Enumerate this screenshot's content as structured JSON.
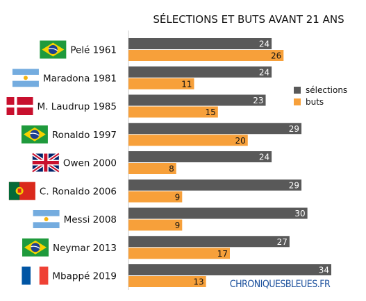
{
  "chart_data": {
    "type": "bar",
    "orientation": "horizontal",
    "title": "SÉLECTIONS ET BUTS AVANT 21 ANS",
    "categories": [
      "Pelé 1961",
      "Maradona 1981",
      "M. Laudrup 1985",
      "Ronaldo 1997",
      "Owen 2000",
      "C. Ronaldo 2006",
      "Messi 2008",
      "Neymar 2013",
      "Mbappé 2019"
    ],
    "flags": [
      "brazil-flag-icon",
      "argentina-flag-icon",
      "denmark-flag-icon",
      "brazil-flag-icon",
      "uk-flag-icon",
      "portugal-flag-icon",
      "argentina-flag-icon",
      "brazil-flag-icon",
      "france-flag-icon"
    ],
    "series": [
      {
        "name": "sélections",
        "color": "#595959",
        "values": [
          24,
          24,
          23,
          29,
          24,
          29,
          30,
          27,
          34
        ]
      },
      {
        "name": "buts",
        "color": "#f7a03a",
        "values": [
          26,
          11,
          15,
          20,
          8,
          9,
          9,
          17,
          13
        ]
      }
    ],
    "xlim": [
      0,
      34
    ],
    "legend_position": "right",
    "grid": false,
    "data_labels": true
  },
  "watermark": "CHRONIQUESBLEUES.FR"
}
